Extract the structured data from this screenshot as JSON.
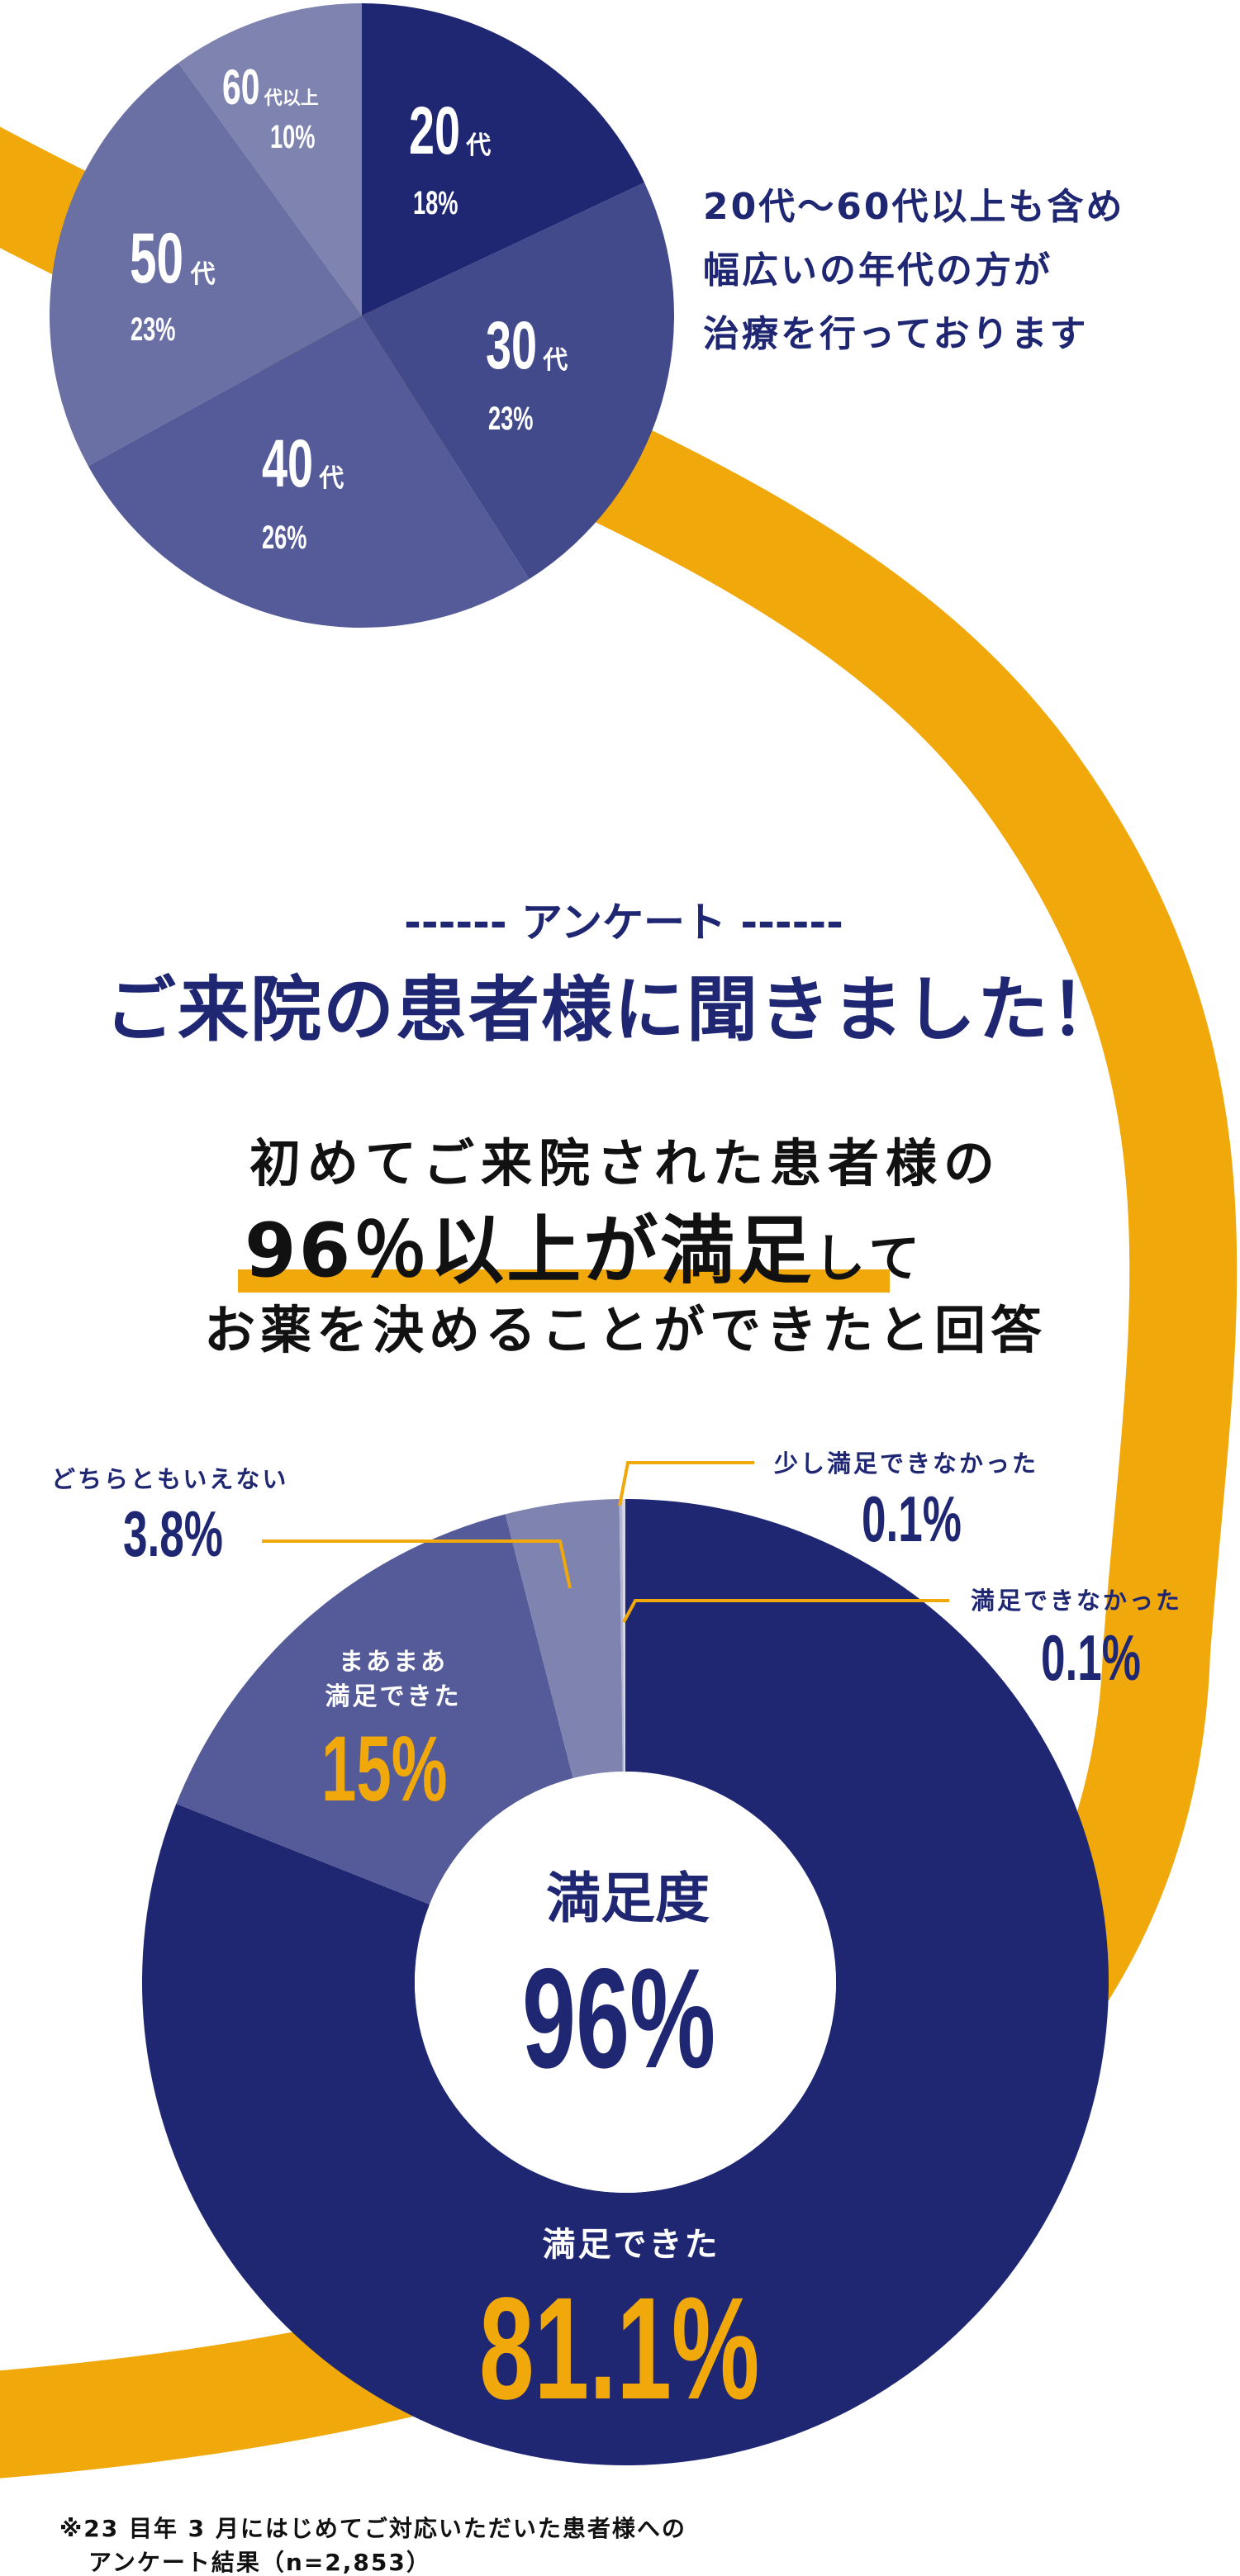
{
  "colors": {
    "navy": "#1f2773",
    "orange": "#f0a80a"
  },
  "age_section": {
    "description_lines": [
      "20代〜60代以上も含め",
      "幅広いの年代の方が",
      "治療を行っております"
    ]
  },
  "survey_section": {
    "eyebrow": "------ アンケート ------",
    "title": "ご来院の患者様に聞きました！",
    "lead_line1": "初めてご来院された患者様の",
    "lead_highlight": "96％以上が満足",
    "lead_line2_suffix": "して",
    "lead_line3": "お薬を決めることができたと回答",
    "center_label": "満足度",
    "center_value": "96%",
    "footnote_line1": "※23 目年 3 月にはじめてご対応いただいた患者様への",
    "footnote_line2": "アンケート結果（n=2,853）"
  },
  "chart_data": [
    {
      "type": "pie",
      "start": "top, clockwise",
      "slices": [
        {
          "label_num": "20",
          "label_unit": "代",
          "value": 18,
          "display": "18%",
          "color": "#1f2773"
        },
        {
          "label_num": "30",
          "label_unit": "代",
          "value": 23,
          "display": "23%",
          "color": "#434a8c"
        },
        {
          "label_num": "40",
          "label_unit": "代",
          "value": 26,
          "display": "26%",
          "color": "#545b98"
        },
        {
          "label_num": "50",
          "label_unit": "代",
          "value": 23,
          "display": "23%",
          "color": "#6a70a3"
        },
        {
          "label_num": "60",
          "label_unit": "代以上",
          "value": 10,
          "display": "10%",
          "color": "#7e83b0"
        }
      ]
    },
    {
      "type": "pie",
      "variant": "donut",
      "start": "top, clockwise",
      "slices": [
        {
          "label": "満足できた",
          "value": 81.1,
          "display": "81.1%",
          "color": "#1f2773"
        },
        {
          "label": "まあまあ\n満足できた",
          "label_lines": [
            "まあまあ",
            "満足できた"
          ],
          "value": 15,
          "display": "15%",
          "color": "#545b98"
        },
        {
          "label": "どちらともいえない",
          "value": 3.8,
          "display": "3.8%",
          "color": "#7e83b0"
        },
        {
          "label": "少し満足できなかった",
          "value": 0.1,
          "display": "0.1%",
          "color": "#b3b6d3"
        },
        {
          "label": "満足できなかった",
          "value": 0.1,
          "display": "0.1%",
          "color": "#d5d7e8"
        }
      ]
    }
  ]
}
